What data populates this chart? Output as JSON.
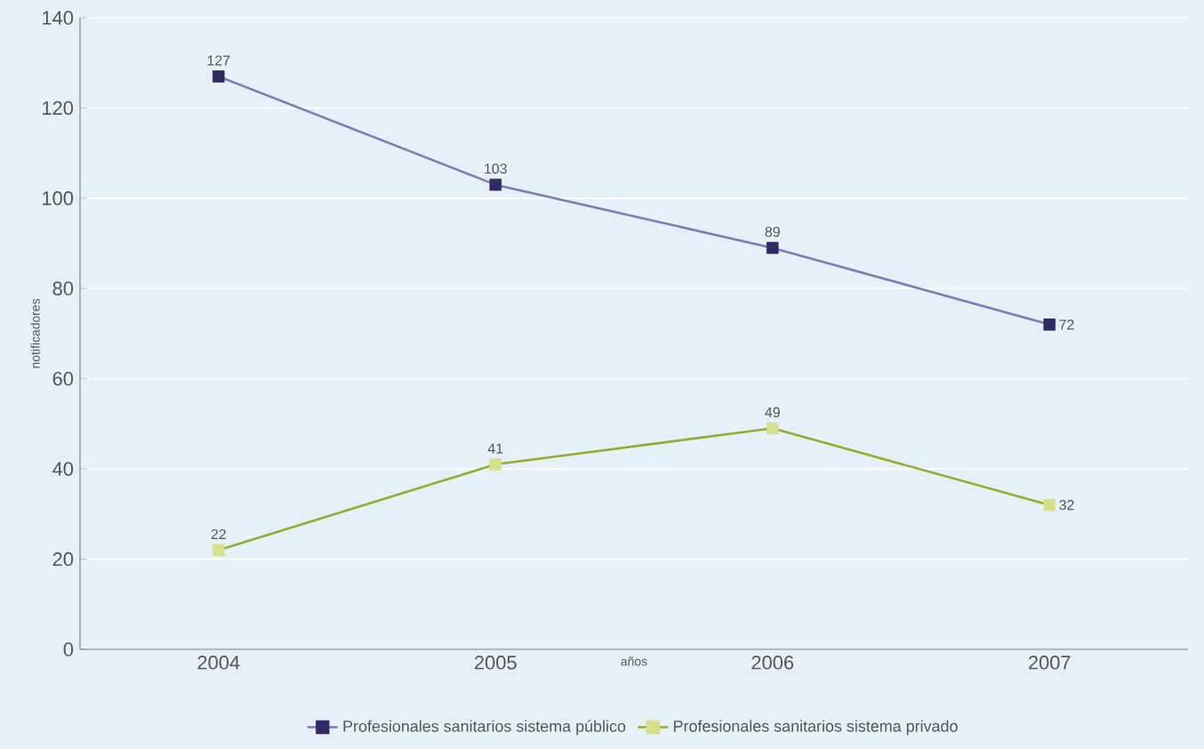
{
  "chart_data": {
    "type": "line",
    "xlabel": "años",
    "ylabel": "notificadores",
    "categories": [
      "2004",
      "2005",
      "2006",
      "2007"
    ],
    "series": [
      {
        "name": "Profesionales sanitarios sistema público",
        "color": "#7d7bb8",
        "colors": [
          "#2e2a63",
          "#2e2a63",
          "#2e2a63",
          "#2e2a63"
        ],
        "values": [
          127,
          103,
          89,
          72
        ]
      },
      {
        "name": "Profesionales sanitarios sistema privado",
        "color": "#9aaa2e",
        "colors": [
          "#d6e08a",
          "#d6e08a",
          "#d6e08a",
          "#d6e08a"
        ],
        "values": [
          22,
          41,
          49,
          32
        ]
      }
    ],
    "ylim": [
      0,
      140
    ],
    "yticks": [
      0,
      20,
      40,
      60,
      80,
      100,
      120,
      140
    ],
    "grid": "y",
    "legend": "bottom",
    "marker": "square",
    "line_style": "solid",
    "data_labels": true
  }
}
